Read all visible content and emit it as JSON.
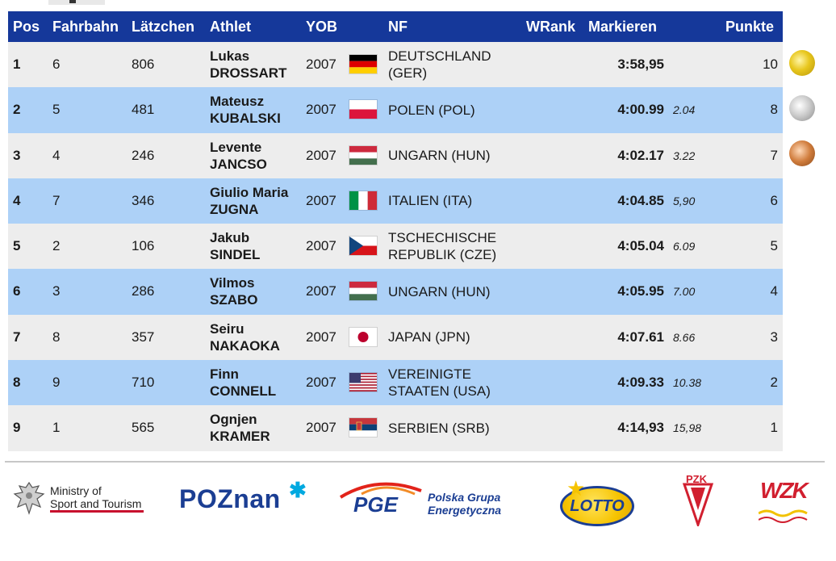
{
  "table": {
    "headers": {
      "pos": "Pos",
      "lane": "Fahrbahn",
      "bib": "Lätzchen",
      "athlete": "Athlet",
      "yob": "YOB",
      "nf": "NF",
      "wrank": "WRank",
      "mark": "Markieren",
      "points": "Punkte"
    },
    "rows": [
      {
        "pos": "1",
        "lane": "6",
        "bib": "806",
        "first": "Lukas",
        "last": "DROSSART",
        "yob": "2007",
        "nf_line1": "DEUTSCHLAND",
        "nf_line2": "(GER)",
        "mark": "3:58,95",
        "gap": "",
        "points": "10",
        "flag": "GER"
      },
      {
        "pos": "2",
        "lane": "5",
        "bib": "481",
        "first": "Mateusz",
        "last": "KUBALSKI",
        "yob": "2007",
        "nf_line1": "POLEN (POL)",
        "nf_line2": "",
        "mark": "4:00.99",
        "gap": "2.04",
        "points": "8",
        "flag": "POL"
      },
      {
        "pos": "3",
        "lane": "4",
        "bib": "246",
        "first": "Levente",
        "last": "JANCSO",
        "yob": "2007",
        "nf_line1": "UNGARN (HUN)",
        "nf_line2": "",
        "mark": "4:02.17",
        "gap": "3.22",
        "points": "7",
        "flag": "HUN"
      },
      {
        "pos": "4",
        "lane": "7",
        "bib": "346",
        "first": "Giulio Maria",
        "last": "ZUGNA",
        "yob": "2007",
        "nf_line1": "ITALIEN (ITA)",
        "nf_line2": "",
        "mark": "4:04.85",
        "gap": "5,90",
        "points": "6",
        "flag": "ITA"
      },
      {
        "pos": "5",
        "lane": "2",
        "bib": "106",
        "first": "Jakub",
        "last": "SINDEL",
        "yob": "2007",
        "nf_line1": "TSCHECHISCHE",
        "nf_line2": "REPUBLIK (CZE)",
        "mark": "4:05.04",
        "gap": "6.09",
        "points": "5",
        "flag": "CZE"
      },
      {
        "pos": "6",
        "lane": "3",
        "bib": "286",
        "first": "Vilmos",
        "last": "SZABO",
        "yob": "2007",
        "nf_line1": "UNGARN (HUN)",
        "nf_line2": "",
        "mark": "4:05.95",
        "gap": "7.00",
        "points": "4",
        "flag": "HUN"
      },
      {
        "pos": "7",
        "lane": "8",
        "bib": "357",
        "first": "Seiru",
        "last": "NAKAOKA",
        "yob": "2007",
        "nf_line1": "JAPAN (JPN)",
        "nf_line2": "",
        "mark": "4:07.61",
        "gap": "8.66",
        "points": "3",
        "flag": "JPN"
      },
      {
        "pos": "8",
        "lane": "9",
        "bib": "710",
        "first": "Finn",
        "last": "CONNELL",
        "yob": "2007",
        "nf_line1": "VEREINIGTE",
        "nf_line2": "STAATEN (USA)",
        "mark": "4:09.33",
        "gap": "10.38",
        "points": "2",
        "flag": "USA"
      },
      {
        "pos": "9",
        "lane": "1",
        "bib": "565",
        "first": "Ognjen",
        "last": "KRAMER",
        "yob": "2007",
        "nf_line1": "SERBIEN (SRB)",
        "nf_line2": "",
        "mark": "4:14,93",
        "gap": "15,98",
        "points": "1",
        "flag": "SRB"
      }
    ]
  },
  "medals": [
    "gold-medal-icon",
    "silver-medal-icon",
    "bronze-medal-icon"
  ],
  "sponsors": {
    "ministry_line1": "Ministry of",
    "ministry_line2": "Sport and Tourism",
    "poznan": "POZnan",
    "pge": "PGE",
    "pge_line1": "Polska Grupa",
    "pge_line2": "Energetyczna",
    "lotto": "LOTTO",
    "pzk": "PZK",
    "wzk": "WZK"
  },
  "colors": {
    "header_bg": "#15389a",
    "row_odd": "#ededed",
    "row_even": "#add1f7",
    "brand_blue": "#1b3e93"
  }
}
